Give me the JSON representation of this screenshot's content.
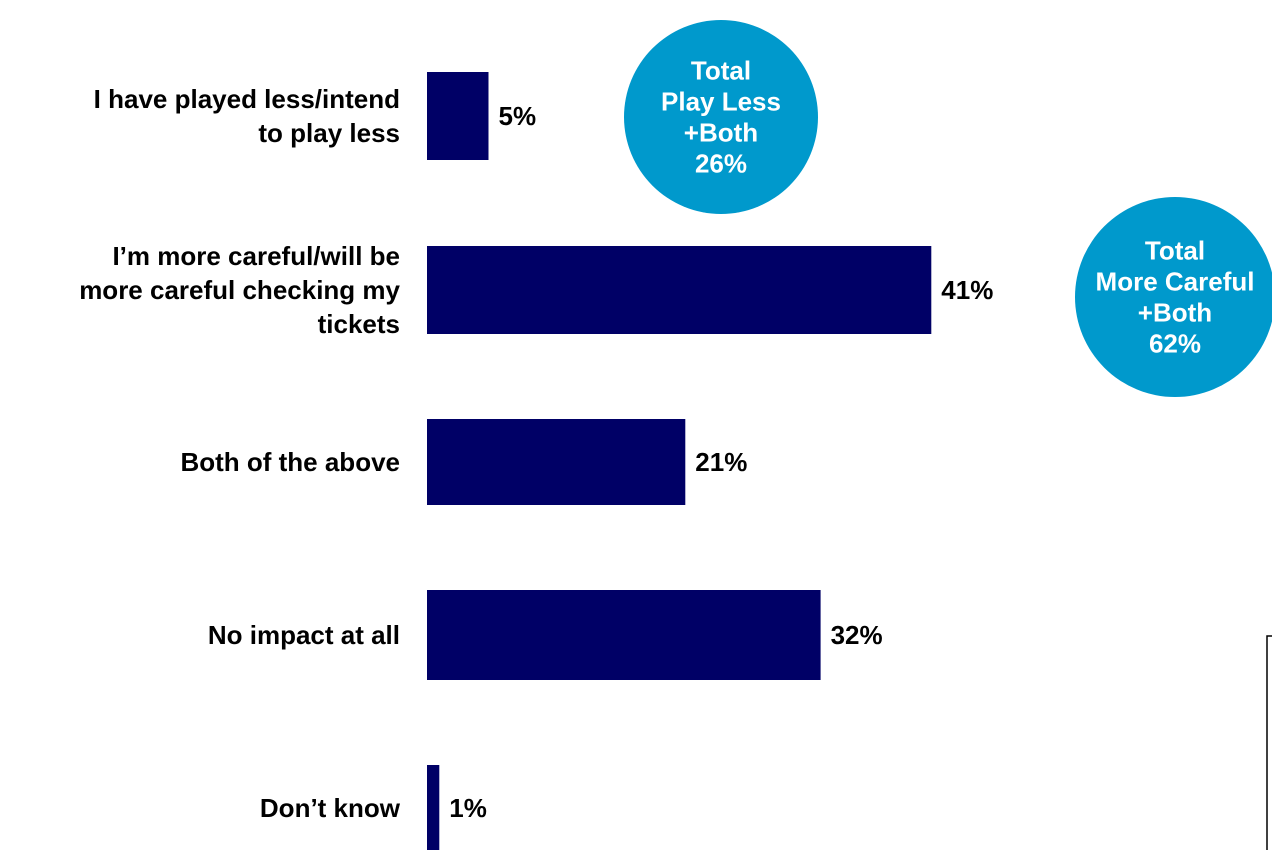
{
  "chart_data": {
    "type": "bar",
    "orientation": "horizontal",
    "categories": [
      [
        "I have played less/intend",
        "to play less"
      ],
      [
        "I’m more careful/will be",
        "more careful checking my",
        "tickets"
      ],
      [
        "Both of the above"
      ],
      [
        "No impact at all"
      ],
      [
        "Don’t know"
      ]
    ],
    "values": [
      5,
      41,
      21,
      32,
      1
    ],
    "value_labels": [
      "5%",
      "41%",
      "21%",
      "32%",
      "1%"
    ],
    "bar_color": "#000066",
    "xlim": [
      0,
      45
    ],
    "grid": false,
    "callouts": [
      {
        "lines": [
          "Total",
          "Play Less",
          "+Both",
          "26%"
        ],
        "color": "#0099CC"
      },
      {
        "lines": [
          "Total",
          "More Careful",
          "+Both",
          "62%"
        ],
        "color": "#0099CC"
      }
    ]
  }
}
